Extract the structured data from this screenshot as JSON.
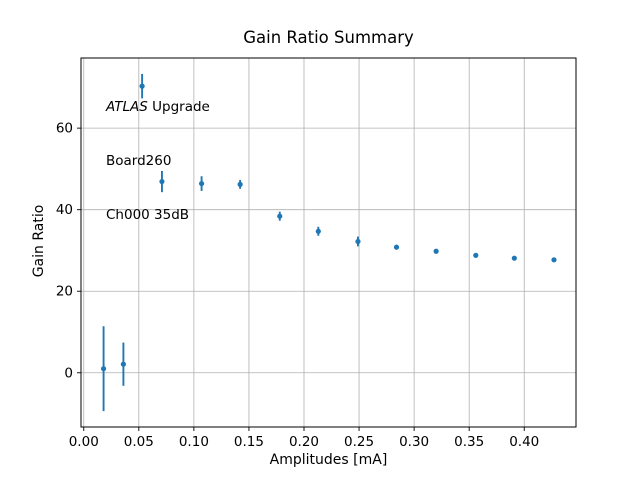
{
  "chart_data": {
    "type": "scatter",
    "title": "Gain Ratio Summary",
    "xlabel": "Amplitudes [mA]",
    "ylabel": "Gain Ratio",
    "annotation": {
      "line1_italic": "ATLAS",
      "line1_rest": " Upgrade",
      "line2": "Board260",
      "line3": "Ch000 35dB"
    },
    "grid": true,
    "legend_position": "none",
    "xlim": [
      -0.0025,
      0.447
    ],
    "ylim": [
      -13.3,
      77.2
    ],
    "xticks": [
      0.0,
      0.05,
      0.1,
      0.15,
      0.2,
      0.25,
      0.3,
      0.35,
      0.4
    ],
    "xtick_labels": [
      "0.00",
      "0.05",
      "0.10",
      "0.15",
      "0.20",
      "0.25",
      "0.30",
      "0.35",
      "0.40"
    ],
    "yticks": [
      0,
      20,
      40,
      60
    ],
    "ytick_labels": [
      "0",
      "20",
      "40",
      "60"
    ],
    "colors": {
      "marker": "#1f77b4",
      "grid": "#b0b0b0",
      "spine": "#000000",
      "background": "#ffffff"
    },
    "series": [
      {
        "name": "gain-ratio-errorbar",
        "marker": "circle",
        "color": "#1f77b4",
        "points": [
          {
            "x": 0.018,
            "y": 1.0,
            "yerr": 10.4
          },
          {
            "x": 0.036,
            "y": 2.1,
            "yerr": 5.3
          },
          {
            "x": 0.053,
            "y": 70.3,
            "yerr": 3.0
          },
          {
            "x": 0.071,
            "y": 46.9,
            "yerr": 2.6
          },
          {
            "x": 0.107,
            "y": 46.4,
            "yerr": 1.8
          },
          {
            "x": 0.142,
            "y": 46.2,
            "yerr": 1.1
          },
          {
            "x": 0.178,
            "y": 38.4,
            "yerr": 1.1
          },
          {
            "x": 0.213,
            "y": 34.7,
            "yerr": 1.1
          },
          {
            "x": 0.249,
            "y": 32.2,
            "yerr": 1.2
          },
          {
            "x": 0.284,
            "y": 30.8,
            "yerr": 0.6
          },
          {
            "x": 0.32,
            "y": 29.8,
            "yerr": 0.5
          },
          {
            "x": 0.356,
            "y": 28.8,
            "yerr": 0.4
          },
          {
            "x": 0.391,
            "y": 28.1,
            "yerr": 0.4
          },
          {
            "x": 0.427,
            "y": 27.7,
            "yerr": 0.3
          }
        ]
      }
    ]
  }
}
